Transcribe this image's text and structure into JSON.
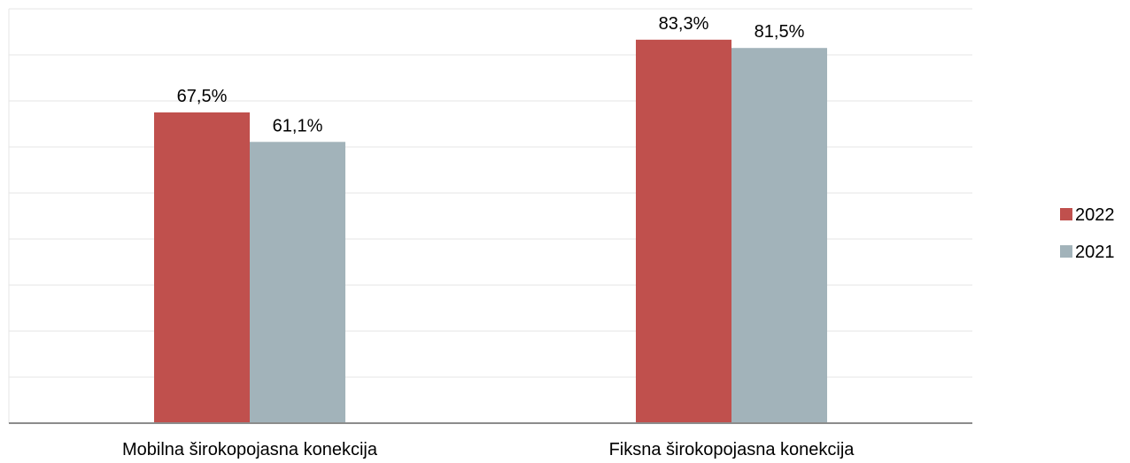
{
  "chart_data": {
    "type": "bar",
    "categories": [
      "Mobilna širokopojasna konekcija",
      "Fiksna širokopojasna konekcija"
    ],
    "series": [
      {
        "name": "2022",
        "values": [
          67.5,
          83.3
        ],
        "labels": [
          "67,5%",
          "83,3%"
        ],
        "color": "#c0504d"
      },
      {
        "name": "2021",
        "values": [
          61.1,
          81.5
        ],
        "labels": [
          "61,1%",
          "81,5%"
        ],
        "color": "#a2b3ba"
      }
    ],
    "ylim": [
      0,
      90
    ],
    "grid": true,
    "legend_position": "right",
    "xlabel": "",
    "ylabel": ""
  }
}
